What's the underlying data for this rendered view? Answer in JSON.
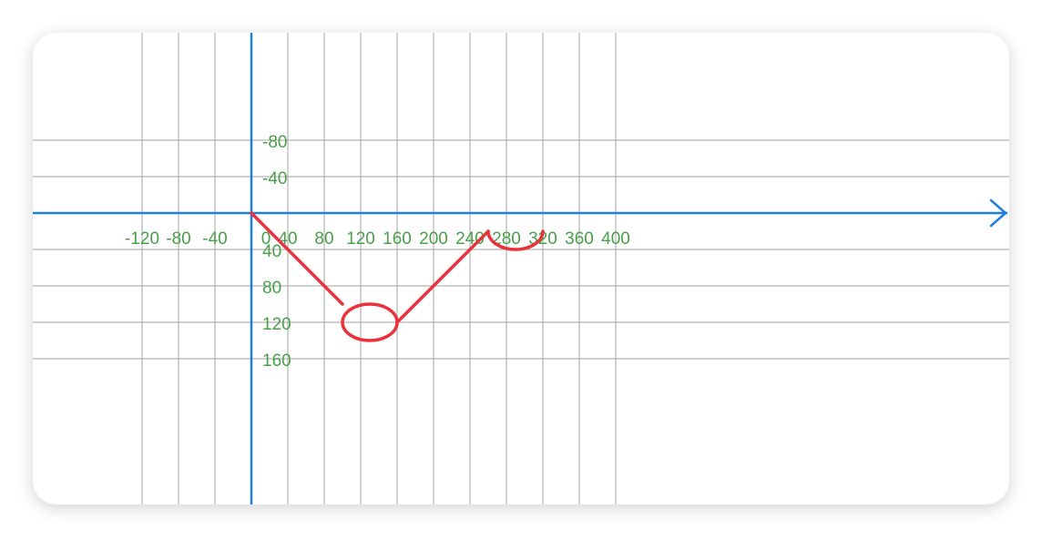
{
  "chart_data": {
    "type": "line",
    "grid": true,
    "x_axis": {
      "tick_labels": [
        "-120",
        "-80",
        "-40",
        "0",
        "40",
        "80",
        "120",
        "160",
        "200",
        "240",
        "280",
        "320",
        "360",
        "400"
      ],
      "range": [
        -120,
        412
      ]
    },
    "y_axis": {
      "tick_labels": [
        "-80",
        "-40",
        "40",
        "80",
        "120",
        "160"
      ],
      "range": [
        -100,
        160
      ],
      "inverted": true
    },
    "shapes": [
      {
        "kind": "segment",
        "from": [
          0,
          0
        ],
        "to": [
          100,
          100
        ]
      },
      {
        "kind": "ellipse",
        "center": [
          130,
          120
        ],
        "rx": 30,
        "ry": 20
      },
      {
        "kind": "segment",
        "from": [
          160,
          120
        ],
        "to": [
          260,
          20
        ]
      },
      {
        "kind": "arc",
        "from": [
          260,
          20
        ],
        "to": [
          320,
          20
        ],
        "rx": 30,
        "ry": 20,
        "direction": "down"
      }
    ],
    "colors": {
      "grid": "#b4b4b4",
      "axis": "#1f7fe0",
      "tick_text": "#4aa04a",
      "shape": "#e8323c"
    }
  }
}
